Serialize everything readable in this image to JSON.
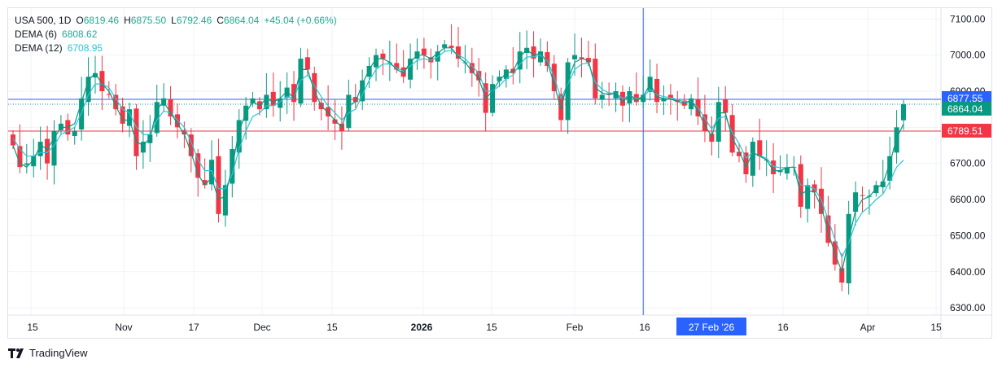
{
  "legend": {
    "symbol": "USA 500, 1D",
    "open_label": "O",
    "open": "6819.46",
    "high_label": "H",
    "high": "6875.50",
    "low_label": "L",
    "low": "6792.46",
    "close_label": "C",
    "close": "6864.04",
    "change": "+45.04 (+0.66%)",
    "dema6_label": "DEMA (6)",
    "dema6_value": "6808.62",
    "dema12_label": "DEMA (12)",
    "dema12_value": "6708.95"
  },
  "price_axis": {
    "ticks": [
      "7100.00",
      "7000.00",
      "6900.00",
      "6800.00",
      "6700.00",
      "6600.00",
      "6500.00",
      "6400.00",
      "6300.00"
    ],
    "badges": [
      {
        "value": "6877.55",
        "color": "#2962ff"
      },
      {
        "value": "6864.04",
        "color": "#089981"
      },
      {
        "value": "6789.51",
        "color": "#f23645"
      }
    ]
  },
  "time_axis": {
    "labels": [
      "15",
      "Nov",
      "17",
      "Dec",
      "15",
      "2026",
      "15",
      "Feb",
      "16",
      "27 Feb '26",
      "16",
      "Apr",
      "15"
    ],
    "crosshair_label": "27 Feb '26"
  },
  "colors": {
    "up": "#089981",
    "down": "#f23645",
    "dema6": "#089981",
    "dema12": "#26c6da",
    "crosshair": "#2962ff",
    "grid": "#f0f3fa"
  },
  "chart_data": {
    "type": "candlestick",
    "ylim": [
      6280,
      7130
    ],
    "close": [
      6750,
      6690,
      6700,
      6720,
      6760,
      6700,
      6790,
      6810,
      6780,
      6790,
      6880,
      6940,
      6950,
      6900,
      6890,
      6850,
      6810,
      6850,
      6720,
      6760,
      6780,
      6870,
      6880,
      6830,
      6800,
      6780,
      6720,
      6660,
      6640,
      6710,
      6560,
      6640,
      6740,
      6820,
      6860,
      6880,
      6850,
      6890,
      6860,
      6880,
      6910,
      6870,
      6990,
      6960,
      6870,
      6850,
      6830,
      6810,
      6790,
      6890,
      6870,
      6930,
      6970,
      7000,
      6990,
      6980,
      6960,
      6940,
      6990,
      7010,
      7000,
      6980,
      7010,
      7030,
      7020,
      6990,
      6980,
      6950,
      6930,
      6840,
      6920,
      6940,
      6960,
      6950,
      7010,
      7020,
      6990,
      7010,
      6970,
      6900,
      6820,
      6980,
      7000,
      6990,
      6980,
      6880,
      6890,
      6890,
      6900,
      6860,
      6900,
      6870,
      6890,
      6940,
      6870,
      6880,
      6880,
      6870,
      6860,
      6880,
      6830,
      6790,
      6760,
      6870,
      6840,
      6730,
      6720,
      6670,
      6760,
      6720,
      6710,
      6670,
      6680,
      6690,
      6690,
      6580,
      6640,
      6620,
      6560,
      6480,
      6420,
      6370,
      6560,
      6620,
      6610,
      6610,
      6640,
      6650,
      6720,
      6800,
      6864
    ],
    "dema6": [
      6750,
      6700,
      6690,
      6710,
      6750,
      6740,
      6770,
      6800,
      6800,
      6810,
      6870,
      6930,
      6950,
      6920,
      6900,
      6860,
      6820,
      6820,
      6760,
      6750,
      6770,
      6850,
      6870,
      6840,
      6810,
      6780,
      6730,
      6670,
      6640,
      6660,
      6600,
      6610,
      6690,
      6790,
      6840,
      6870,
      6860,
      6880,
      6870,
      6880,
      6900,
      6880,
      6960,
      6960,
      6900,
      6860,
      6840,
      6820,
      6800,
      6860,
      6870,
      6920,
      6960,
      6990,
      6990,
      6980,
      6960,
      6950,
      6980,
      7000,
      7000,
      6990,
      7005,
      7020,
      7020,
      6995,
      6980,
      6955,
      6935,
      6880,
      6900,
      6930,
      6950,
      6955,
      6995,
      7015,
      7000,
      7005,
      6980,
      6920,
      6850,
      6930,
      6980,
      6990,
      6985,
      6910,
      6895,
      6890,
      6895,
      6870,
      6890,
      6875,
      6885,
      6920,
      6885,
      6880,
      6878,
      6872,
      6865,
      6875,
      6845,
      6805,
      6775,
      6840,
      6840,
      6770,
      6735,
      6690,
      6730,
      6720,
      6710,
      6680,
      6680,
      6688,
      6690,
      6615,
      6625,
      6620,
      6580,
      6510,
      6450,
      6400,
      6490,
      6570,
      6600,
      6608,
      6630,
      6645,
      6700,
      6770,
      6809
    ],
    "dema12": [
      6770,
      6740,
      6720,
      6720,
      6730,
      6730,
      6750,
      6780,
      6790,
      6800,
      6840,
      6890,
      6920,
      6920,
      6910,
      6880,
      6850,
      6840,
      6800,
      6780,
      6780,
      6820,
      6845,
      6840,
      6820,
      6800,
      6760,
      6710,
      6680,
      6680,
      6630,
      6630,
      6670,
      6740,
      6790,
      6830,
      6840,
      6860,
      6860,
      6870,
      6885,
      6880,
      6930,
      6945,
      6915,
      6885,
      6860,
      6840,
      6820,
      6840,
      6850,
      6890,
      6930,
      6960,
      6975,
      6975,
      6965,
      6955,
      6970,
      6985,
      6990,
      6985,
      6995,
      7010,
      7013,
      7000,
      6990,
      6970,
      6950,
      6900,
      6900,
      6915,
      6935,
      6945,
      6975,
      6995,
      6995,
      7000,
      6985,
      6940,
      6880,
      6920,
      6960,
      6975,
      6978,
      6925,
      6905,
      6895,
      6895,
      6880,
      6888,
      6880,
      6884,
      6905,
      6890,
      6885,
      6882,
      6877,
      6870,
      6873,
      6855,
      6825,
      6795,
      6825,
      6830,
      6785,
      6755,
      6715,
      6730,
      6722,
      6714,
      6692,
      6688,
      6689,
      6690,
      6640,
      6637,
      6630,
      6600,
      6545,
      6490,
      6440,
      6480,
      6535,
      6565,
      6580,
      6600,
      6615,
      6650,
      6690,
      6709
    ],
    "last_open": 6819.46,
    "last_high": 6875.5,
    "last_low": 6792.46,
    "last_close": 6864.04,
    "horizontal_lines": [
      6877.55,
      6864.04,
      6789.51
    ],
    "crosshair_index": 92
  }
}
